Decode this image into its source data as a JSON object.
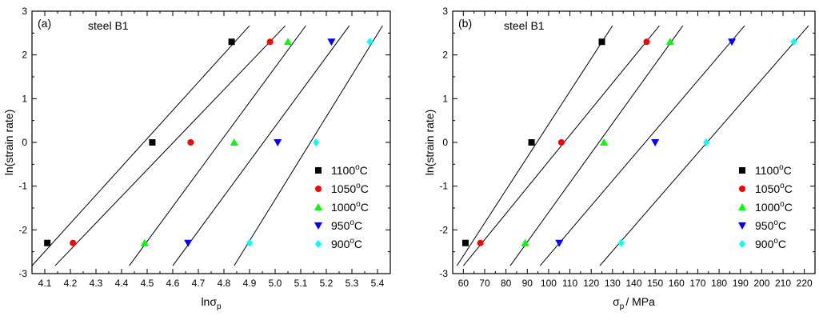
{
  "chart_data": [
    {
      "type": "scatter",
      "panel_label": "(a)",
      "annotation": "steel B1",
      "xlabel_main": "lnσ",
      "xlabel_sub": "p",
      "ylabel": "ln(strain rate)",
      "xlim": [
        4.05,
        5.45
      ],
      "ylim": [
        -3,
        3
      ],
      "xticks": [
        4.1,
        4.2,
        4.3,
        4.4,
        4.5,
        4.6,
        4.7,
        4.8,
        4.9,
        5.0,
        5.1,
        5.2,
        5.3,
        5.4
      ],
      "xtick_labels": [
        "4.1",
        "4.2",
        "4.3",
        "4.4",
        "4.5",
        "4.6",
        "4.7",
        "4.8",
        "4.9",
        "5.0",
        "5.1",
        "5.2",
        "5.3",
        "5.4"
      ],
      "yticks": [
        -3,
        -2,
        -1,
        0,
        1,
        2,
        3
      ],
      "ytick_labels": [
        "-3",
        "-2",
        "-1",
        "0",
        "1",
        "2",
        "3"
      ],
      "legend_position": "right",
      "series": [
        {
          "name": "1100°C",
          "temp": "1100",
          "unit": "C",
          "marker": "square",
          "color": "#000000",
          "x": [
            4.11,
            4.52,
            4.83
          ],
          "y": [
            -2.3,
            0.0,
            2.3
          ],
          "fit": [
            [
              4.05,
              -2.82
            ],
            [
              4.9,
              2.67
            ]
          ]
        },
        {
          "name": "1050°C",
          "temp": "1050",
          "unit": "C",
          "marker": "circle",
          "color": "#ff0000",
          "x": [
            4.21,
            4.67,
            4.98
          ],
          "y": [
            -2.3,
            0.0,
            2.3
          ],
          "fit": [
            [
              4.14,
              -2.82
            ],
            [
              5.04,
              2.67
            ]
          ]
        },
        {
          "name": "1000°C",
          "temp": "1000",
          "unit": "C",
          "marker": "triangle-up",
          "color": "#00ff00",
          "x": [
            4.49,
            4.84,
            5.05
          ],
          "y": [
            -2.3,
            0.0,
            2.3
          ],
          "fit": [
            [
              4.43,
              -2.82
            ],
            [
              5.12,
              2.67
            ]
          ]
        },
        {
          "name": "950°C",
          "temp": "950",
          "unit": "C",
          "marker": "triangle-down",
          "color": "#0000ff",
          "x": [
            4.66,
            5.01,
            5.22
          ],
          "y": [
            -2.3,
            0.0,
            2.3
          ],
          "fit": [
            [
              4.6,
              -2.82
            ],
            [
              5.29,
              2.67
            ]
          ]
        },
        {
          "name": "900°C",
          "temp": "900",
          "unit": "C",
          "marker": "diamond",
          "color": "#00ffff",
          "x": [
            4.9,
            5.16,
            5.37
          ],
          "y": [
            -2.3,
            0.0,
            2.3
          ],
          "fit": [
            [
              4.84,
              -2.82
            ],
            [
              5.42,
              2.67
            ]
          ]
        }
      ]
    },
    {
      "type": "scatter",
      "panel_label": "(b)",
      "annotation": "steel B1",
      "xlabel_main": "σ",
      "xlabel_sub": "p",
      "xlabel_tail": "/ MPa",
      "ylabel": "ln(strain rate)",
      "xlim": [
        55,
        225
      ],
      "ylim": [
        -3,
        3
      ],
      "xticks": [
        60,
        70,
        80,
        90,
        100,
        110,
        120,
        130,
        140,
        150,
        160,
        170,
        180,
        190,
        200,
        210,
        220
      ],
      "xtick_labels": [
        "60",
        "70",
        "80",
        "90",
        "100",
        "110",
        "120",
        "130",
        "140",
        "150",
        "160",
        "170",
        "180",
        "190",
        "200",
        "210",
        "220"
      ],
      "yticks": [
        -3,
        -2,
        -1,
        0,
        1,
        2,
        3
      ],
      "ytick_labels": [
        "-3",
        "-2",
        "-1",
        "0",
        "1",
        "2",
        "3"
      ],
      "legend_position": "right",
      "series": [
        {
          "name": "1100°C",
          "temp": "1100",
          "unit": "C",
          "marker": "square",
          "color": "#000000",
          "x": [
            61,
            92,
            125
          ],
          "y": [
            -2.3,
            0.0,
            2.3
          ],
          "fit": [
            [
              57,
              -2.82
            ],
            [
              130,
              2.67
            ]
          ]
        },
        {
          "name": "1050°C",
          "temp": "1050",
          "unit": "C",
          "marker": "circle",
          "color": "#ff0000",
          "x": [
            68,
            106,
            146
          ],
          "y": [
            -2.3,
            0.0,
            2.3
          ],
          "fit": [
            [
              60,
              -2.82
            ],
            [
              152,
              2.67
            ]
          ]
        },
        {
          "name": "1000°C",
          "temp": "1000",
          "unit": "C",
          "marker": "triangle-up",
          "color": "#00ff00",
          "x": [
            89,
            126,
            157
          ],
          "y": [
            -2.3,
            0.0,
            2.3
          ],
          "fit": [
            [
              82,
              -2.82
            ],
            [
              163,
              2.67
            ]
          ]
        },
        {
          "name": "950°C",
          "temp": "950",
          "unit": "C",
          "marker": "triangle-down",
          "color": "#0000ff",
          "x": [
            105,
            150,
            186
          ],
          "y": [
            -2.3,
            0.0,
            2.3
          ],
          "fit": [
            [
              96,
              -2.82
            ],
            [
              192,
              2.67
            ]
          ]
        },
        {
          "name": "900°C",
          "temp": "900",
          "unit": "C",
          "marker": "diamond",
          "color": "#00ffff",
          "x": [
            134,
            174,
            215
          ],
          "y": [
            -2.3,
            0.0,
            2.3
          ],
          "fit": [
            [
              124,
              -2.82
            ],
            [
              222,
              2.67
            ]
          ]
        }
      ]
    }
  ]
}
